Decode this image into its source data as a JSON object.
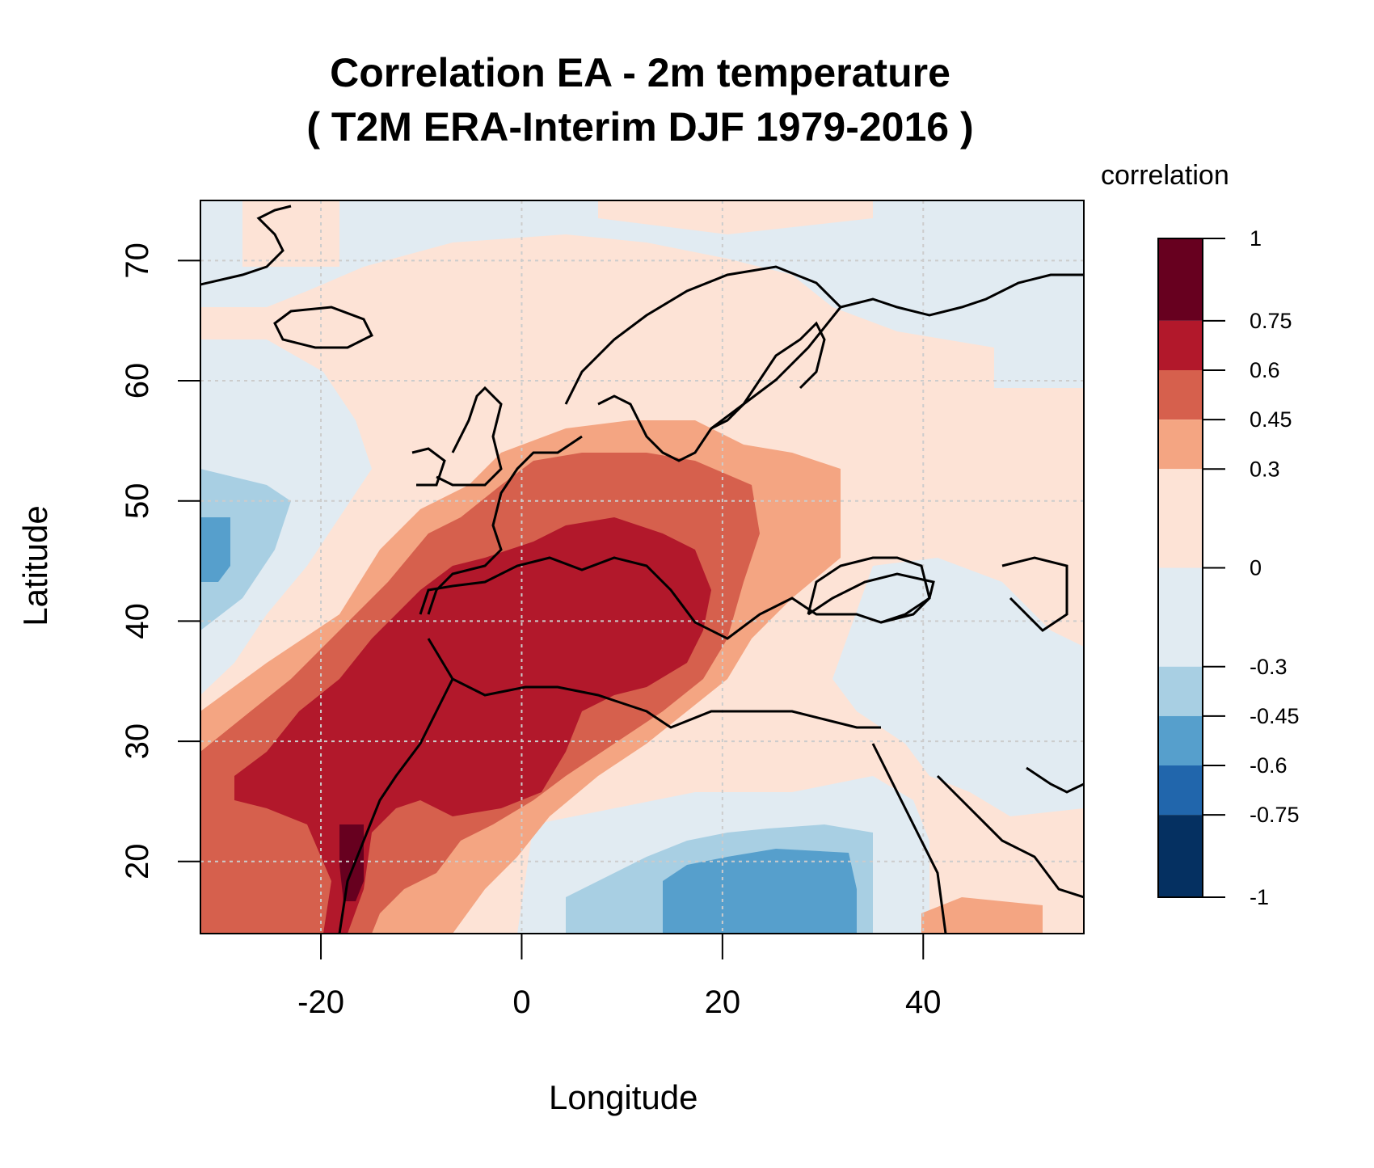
{
  "title_line1": "Correlation EA - 2m temperature",
  "title_line2": "( T2M ERA-Interim DJF 1979-2016 )",
  "xlabel": "Longitude",
  "ylabel": "Latitude",
  "legend": {
    "title": "correlation",
    "breaks": [
      1,
      0.75,
      0.6,
      0.45,
      0.3,
      0,
      -0.3,
      -0.45,
      -0.6,
      -0.75,
      -1
    ],
    "colors": [
      "#67001f",
      "#b2182b",
      "#d6604d",
      "#f4a582",
      "#fde3d6",
      "#e1ebf2",
      "#a8cfe3",
      "#569fcc",
      "#2166ac",
      "#053061"
    ]
  },
  "axes": {
    "xlim": [
      -32,
      56
    ],
    "ylim": [
      14,
      75
    ],
    "xticks": [
      -20,
      0,
      20,
      40
    ],
    "yticks": [
      20,
      30,
      40,
      50,
      60,
      70
    ]
  },
  "chart_data": {
    "type": "heatmap",
    "variable": "correlation",
    "colors": {
      "neg_weak": "#e1ebf2",
      "neg_mod": "#a8cfe3",
      "neg_strong": "#569fcc",
      "pos_weak": "#fde3d6",
      "pos_mod": "#f4a582",
      "pos_strong": "#d6604d",
      "pos_vstrong": "#b2182b",
      "pos_max": "#67001f"
    }
  }
}
